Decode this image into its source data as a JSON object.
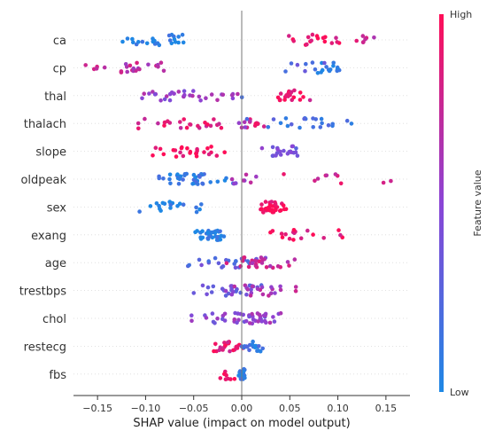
{
  "chart_data": {
    "type": "scatter",
    "subtype": "shap-beeswarm",
    "xlabel": "SHAP value (impact on model output)",
    "xlim": [
      -0.175,
      0.175
    ],
    "xticks": [
      -0.15,
      -0.1,
      -0.05,
      0.0,
      0.05,
      0.1,
      0.15
    ],
    "xtick_labels": [
      "−0.15",
      "−0.10",
      "−0.05",
      "0.00",
      "0.05",
      "0.10",
      "0.15"
    ],
    "colorbar": {
      "label": "Feature value",
      "high": "High",
      "low": "Low",
      "low_color": "#1e88e5",
      "high_color": "#ff0d57"
    },
    "features": [
      {
        "name": "ca",
        "clusters": [
          {
            "c": -0.09,
            "s": 0.055,
            "n": 26,
            "v": 0.05
          },
          {
            "c": 0.08,
            "s": 0.04,
            "n": 18,
            "v": 0.92
          },
          {
            "c": 0.13,
            "s": 0.02,
            "n": 7,
            "v": 0.75
          }
        ]
      },
      {
        "name": "cp",
        "clusters": [
          {
            "c": -0.12,
            "s": 0.055,
            "n": 24,
            "v": 0.7
          },
          {
            "c": 0.09,
            "s": 0.015,
            "n": 14,
            "v": 0.05
          },
          {
            "c": 0.07,
            "s": 0.04,
            "n": 8,
            "v": 0.3
          }
        ]
      },
      {
        "name": "thal",
        "clusters": [
          {
            "c": -0.05,
            "s": 0.065,
            "n": 32,
            "v": 0.55
          },
          {
            "c": 0.05,
            "s": 0.022,
            "n": 20,
            "v": 0.9
          },
          {
            "c": 0.0,
            "s": 0.002,
            "n": 1,
            "v": 0.1
          }
        ]
      },
      {
        "name": "thalach",
        "clusters": [
          {
            "c": -0.04,
            "s": 0.09,
            "n": 34,
            "v": 0.85
          },
          {
            "c": 0.07,
            "s": 0.07,
            "n": 22,
            "v": 0.2
          },
          {
            "c": 0.005,
            "s": 0.01,
            "n": 4,
            "v": 0.6
          }
        ]
      },
      {
        "name": "slope",
        "clusters": [
          {
            "c": -0.055,
            "s": 0.04,
            "n": 26,
            "v": 0.95
          },
          {
            "c": 0.045,
            "s": 0.028,
            "n": 22,
            "v": 0.4
          }
        ]
      },
      {
        "name": "oldpeak",
        "clusters": [
          {
            "c": -0.05,
            "s": 0.045,
            "n": 38,
            "v": 0.1
          },
          {
            "c": 0.0,
            "s": 0.025,
            "n": 8,
            "v": 0.6
          },
          {
            "c": 0.1,
            "s": 0.07,
            "n": 10,
            "v": 0.85
          }
        ]
      },
      {
        "name": "sex",
        "clusters": [
          {
            "c": -0.075,
            "s": 0.04,
            "n": 20,
            "v": 0.03
          },
          {
            "c": 0.03,
            "s": 0.02,
            "n": 34,
            "v": 0.97
          }
        ]
      },
      {
        "name": "exang",
        "clusters": [
          {
            "c": -0.03,
            "s": 0.024,
            "n": 34,
            "v": 0.03
          },
          {
            "c": 0.065,
            "s": 0.05,
            "n": 18,
            "v": 0.93
          }
        ]
      },
      {
        "name": "age",
        "clusters": [
          {
            "c": -0.02,
            "s": 0.06,
            "n": 24,
            "v": 0.3
          },
          {
            "c": 0.02,
            "s": 0.04,
            "n": 26,
            "v": 0.75
          }
        ]
      },
      {
        "name": "trestbps",
        "clusters": [
          {
            "c": -0.015,
            "s": 0.045,
            "n": 26,
            "v": 0.35
          },
          {
            "c": 0.02,
            "s": 0.06,
            "n": 22,
            "v": 0.65
          }
        ]
      },
      {
        "name": "chol",
        "clusters": [
          {
            "c": -0.01,
            "s": 0.045,
            "n": 24,
            "v": 0.45
          },
          {
            "c": 0.015,
            "s": 0.035,
            "n": 24,
            "v": 0.55
          }
        ]
      },
      {
        "name": "restecg",
        "clusters": [
          {
            "c": -0.015,
            "s": 0.018,
            "n": 22,
            "v": 0.9
          },
          {
            "c": 0.01,
            "s": 0.02,
            "n": 20,
            "v": 0.1
          }
        ]
      },
      {
        "name": "fbs",
        "clusters": [
          {
            "c": -0.02,
            "s": 0.02,
            "n": 8,
            "v": 0.95
          },
          {
            "c": 0.0,
            "s": 0.004,
            "n": 30,
            "v": 0.05
          }
        ]
      }
    ]
  }
}
